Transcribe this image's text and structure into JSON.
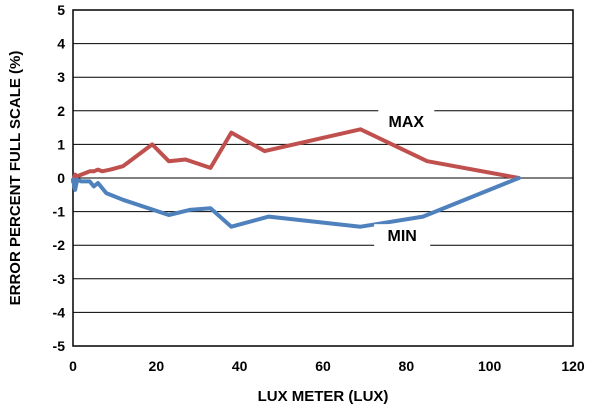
{
  "chart_data": {
    "type": "line",
    "xlabel": "LUX METER (LUX)",
    "ylabel": "ERROR PERCENT FULL SCALE (%)",
    "xlim": [
      0,
      120
    ],
    "ylim": [
      -5,
      5
    ],
    "x_ticks": [
      "0",
      "20",
      "40",
      "60",
      "80",
      "100",
      "120"
    ],
    "y_ticks": [
      "5",
      "4",
      "3",
      "2",
      "1",
      "0",
      "-1",
      "-2",
      "-3",
      "-4",
      "-5"
    ],
    "grid": "horizontal",
    "legend": "none",
    "series": [
      {
        "name": "MAX",
        "color": "#c0504d",
        "points": [
          [
            0,
            -0.1
          ],
          [
            0.5,
            0.1
          ],
          [
            1,
            0.05
          ],
          [
            2,
            0.1
          ],
          [
            3,
            0.15
          ],
          [
            4,
            0.2
          ],
          [
            5,
            0.2
          ],
          [
            6,
            0.25
          ],
          [
            7,
            0.2
          ],
          [
            9,
            0.25
          ],
          [
            12,
            0.35
          ],
          [
            19,
            1.0
          ],
          [
            23,
            0.5
          ],
          [
            27,
            0.55
          ],
          [
            33,
            0.3
          ],
          [
            38,
            1.35
          ],
          [
            46,
            0.8
          ],
          [
            69,
            1.45
          ],
          [
            85,
            0.5
          ],
          [
            107,
            0.0
          ]
        ]
      },
      {
        "name": "MIN",
        "color": "#4f81bd",
        "points": [
          [
            0,
            -0.05
          ],
          [
            0.5,
            -0.35
          ],
          [
            1,
            -0.05
          ],
          [
            2,
            -0.1
          ],
          [
            4,
            -0.1
          ],
          [
            5,
            -0.25
          ],
          [
            6,
            -0.15
          ],
          [
            7,
            -0.3
          ],
          [
            8,
            -0.45
          ],
          [
            12,
            -0.65
          ],
          [
            23,
            -1.1
          ],
          [
            28,
            -0.95
          ],
          [
            33,
            -0.9
          ],
          [
            38,
            -1.45
          ],
          [
            47,
            -1.15
          ],
          [
            69,
            -1.45
          ],
          [
            84,
            -1.15
          ],
          [
            107,
            0.0
          ]
        ]
      }
    ],
    "annotations": [
      {
        "text": "MAX",
        "x": 80,
        "y": 1.55
      },
      {
        "text": "MIN",
        "x": 79,
        "y": -1.85
      }
    ]
  }
}
